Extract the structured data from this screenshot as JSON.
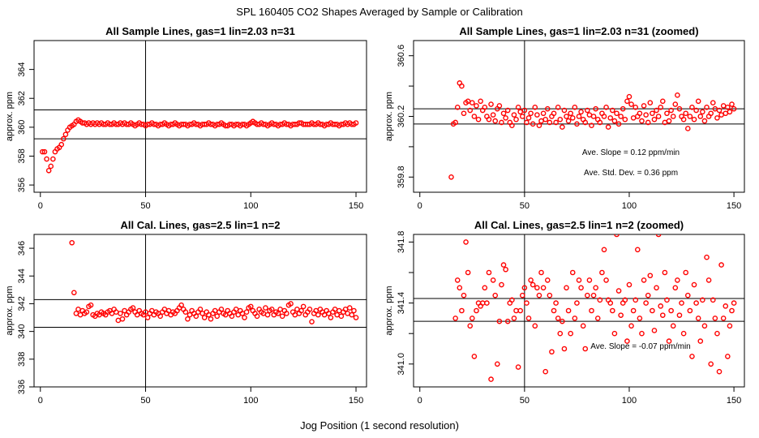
{
  "figure": {
    "main_title": "SPL  160405  CO2 Shapes Averaged by Sample or Calibration",
    "xlabel": "Jog Position (1 second resolution)"
  },
  "chart_data": [
    {
      "type": "scatter",
      "title": "All Sample Lines, gas=1 lin=2.03 n=31",
      "ylabel": "approx. ppm",
      "xlim": [
        -3,
        155
      ],
      "ylim": [
        355.5,
        366
      ],
      "xticks": [
        0,
        50,
        100,
        150
      ],
      "yticks": [
        356,
        358,
        360,
        362,
        364
      ],
      "vline": 50,
      "hlines": [
        359.2,
        361.2
      ],
      "color": "#ff0000",
      "grid": false,
      "annotations": [],
      "x": [
        1,
        2,
        3,
        4,
        5,
        6,
        7,
        8,
        9,
        10,
        11,
        12,
        13,
        14,
        15,
        16,
        17,
        18,
        19,
        20,
        21,
        22,
        23,
        24,
        25,
        26,
        27,
        28,
        29,
        30,
        31,
        32,
        33,
        34,
        35,
        36,
        37,
        38,
        39,
        40,
        41,
        42,
        43,
        44,
        45,
        46,
        47,
        48,
        49,
        50,
        51,
        52,
        53,
        54,
        55,
        56,
        57,
        58,
        59,
        60,
        61,
        62,
        63,
        64,
        65,
        66,
        67,
        68,
        69,
        70,
        71,
        72,
        73,
        74,
        75,
        76,
        77,
        78,
        79,
        80,
        81,
        82,
        83,
        84,
        85,
        86,
        87,
        88,
        89,
        90,
        91,
        92,
        93,
        94,
        95,
        96,
        97,
        98,
        99,
        100,
        101,
        102,
        103,
        104,
        105,
        106,
        107,
        108,
        109,
        110,
        111,
        112,
        113,
        114,
        115,
        116,
        117,
        118,
        119,
        120,
        121,
        122,
        123,
        124,
        125,
        126,
        127,
        128,
        129,
        130,
        131,
        132,
        133,
        134,
        135,
        136,
        137,
        138,
        139,
        140,
        141,
        142,
        143,
        144,
        145,
        146,
        147,
        148,
        149,
        150
      ],
      "y": [
        358.3,
        358.3,
        357.8,
        357.0,
        357.3,
        357.8,
        358.3,
        358.5,
        358.6,
        358.8,
        359.2,
        359.5,
        359.8,
        360.0,
        360.1,
        360.2,
        360.4,
        360.5,
        360.4,
        360.3,
        360.3,
        360.2,
        360.3,
        360.2,
        360.3,
        360.2,
        360.3,
        360.2,
        360.3,
        360.2,
        360.2,
        360.3,
        360.2,
        360.2,
        360.3,
        360.2,
        360.2,
        360.3,
        360.2,
        360.3,
        360.2,
        360.2,
        360.3,
        360.2,
        360.1,
        360.2,
        360.3,
        360.2,
        360.2,
        360.1,
        360.2,
        360.2,
        360.3,
        360.2,
        360.2,
        360.1,
        360.2,
        360.2,
        360.3,
        360.2,
        360.1,
        360.2,
        360.2,
        360.3,
        360.2,
        360.1,
        360.2,
        360.2,
        360.2,
        360.1,
        360.2,
        360.2,
        360.3,
        360.2,
        360.2,
        360.1,
        360.2,
        360.2,
        360.2,
        360.3,
        360.2,
        360.2,
        360.1,
        360.2,
        360.2,
        360.3,
        360.2,
        360.1,
        360.1,
        360.2,
        360.2,
        360.1,
        360.2,
        360.2,
        360.1,
        360.2,
        360.2,
        360.1,
        360.2,
        360.3,
        360.4,
        360.3,
        360.2,
        360.2,
        360.3,
        360.2,
        360.2,
        360.1,
        360.2,
        360.3,
        360.2,
        360.2,
        360.1,
        360.2,
        360.2,
        360.3,
        360.2,
        360.2,
        360.1,
        360.2,
        360.2,
        360.2,
        360.3,
        360.3,
        360.2,
        360.2,
        360.2,
        360.2,
        360.3,
        360.2,
        360.2,
        360.3,
        360.2,
        360.2,
        360.1,
        360.2,
        360.2,
        360.3,
        360.2,
        360.2,
        360.2,
        360.1,
        360.2,
        360.2,
        360.3,
        360.2,
        360.3,
        360.2,
        360.2,
        360.3
      ]
    },
    {
      "type": "scatter",
      "title": "All Sample Lines, gas=1 lin=2.03 n=31 (zoomed)",
      "ylabel": "approx. ppm",
      "xlim": [
        -3,
        155
      ],
      "ylim": [
        359.7,
        360.7
      ],
      "xticks": [
        0,
        50,
        100,
        150
      ],
      "yticks": [
        359.8,
        360.0,
        360.2,
        360.4,
        360.6
      ],
      "yticklabels": [
        "359.8",
        "",
        "360.2",
        "",
        "360.6"
      ],
      "vline": 50,
      "hlines": [
        360.15,
        360.25
      ],
      "color": "#ff0000",
      "grid": false,
      "annotations": [
        "Ave. Slope =  0.12  ppm/min",
        "Ave. Std. Dev. =  0.36  ppm"
      ],
      "x": [
        15,
        16,
        17,
        18,
        19,
        20,
        21,
        22,
        23,
        24,
        25,
        26,
        27,
        28,
        29,
        30,
        31,
        32,
        33,
        34,
        35,
        36,
        37,
        38,
        39,
        40,
        41,
        42,
        43,
        44,
        45,
        46,
        47,
        48,
        49,
        50,
        51,
        52,
        53,
        54,
        55,
        56,
        57,
        58,
        59,
        60,
        61,
        62,
        63,
        64,
        65,
        66,
        67,
        68,
        69,
        70,
        71,
        72,
        73,
        74,
        75,
        76,
        77,
        78,
        79,
        80,
        81,
        82,
        83,
        84,
        85,
        86,
        87,
        88,
        89,
        90,
        91,
        92,
        93,
        94,
        95,
        96,
        97,
        98,
        99,
        100,
        101,
        102,
        103,
        104,
        105,
        106,
        107,
        108,
        109,
        110,
        111,
        112,
        113,
        114,
        115,
        116,
        117,
        118,
        119,
        120,
        121,
        122,
        123,
        124,
        125,
        126,
        127,
        128,
        129,
        130,
        131,
        132,
        133,
        134,
        135,
        136,
        137,
        138,
        139,
        140,
        141,
        142,
        143,
        144,
        145,
        146,
        147,
        148,
        149,
        150
      ],
      "y": [
        359.8,
        360.15,
        360.16,
        360.26,
        360.42,
        360.4,
        360.22,
        360.29,
        360.3,
        360.24,
        360.29,
        360.2,
        360.27,
        360.18,
        360.3,
        360.24,
        360.26,
        360.2,
        360.18,
        360.28,
        360.21,
        360.17,
        360.25,
        360.27,
        360.16,
        360.22,
        360.19,
        360.24,
        360.16,
        360.14,
        360.21,
        360.18,
        360.26,
        360.23,
        360.2,
        360.24,
        360.16,
        360.19,
        360.22,
        360.15,
        360.26,
        360.21,
        360.14,
        360.17,
        360.22,
        360.18,
        360.25,
        360.16,
        360.2,
        360.22,
        360.16,
        360.26,
        360.18,
        360.13,
        360.24,
        360.2,
        360.17,
        360.22,
        360.19,
        360.26,
        360.15,
        360.2,
        360.23,
        360.18,
        360.16,
        360.24,
        360.21,
        360.14,
        360.2,
        360.25,
        360.18,
        360.16,
        360.22,
        360.2,
        360.26,
        360.13,
        360.19,
        360.24,
        360.17,
        360.22,
        360.15,
        360.2,
        360.25,
        360.18,
        360.3,
        360.33,
        360.28,
        360.19,
        360.26,
        360.2,
        360.22,
        360.17,
        360.27,
        360.21,
        360.16,
        360.29,
        360.22,
        360.18,
        360.24,
        360.2,
        360.26,
        360.3,
        360.16,
        360.22,
        360.17,
        360.24,
        360.2,
        360.28,
        360.34,
        360.25,
        360.2,
        360.18,
        360.22,
        360.12,
        360.2,
        360.26,
        360.18,
        360.24,
        360.3,
        360.2,
        360.23,
        360.17,
        360.26,
        360.2,
        360.22,
        360.29,
        360.25,
        360.19,
        360.24,
        360.21,
        360.27,
        360.22,
        360.26,
        360.23,
        360.28,
        360.25
      ]
    },
    {
      "type": "scatter",
      "title": "All Cal. Lines, gas=2.5 lin=1 n=2",
      "ylabel": "approx. ppm",
      "xlim": [
        -3,
        155
      ],
      "ylim": [
        336,
        347
      ],
      "xticks": [
        0,
        50,
        100,
        150
      ],
      "yticks": [
        336,
        338,
        340,
        342,
        344,
        346
      ],
      "vline": 50,
      "hlines": [
        340.3,
        342.3
      ],
      "color": "#ff0000",
      "grid": false,
      "annotations": [],
      "x": [
        15,
        16,
        17,
        18,
        19,
        20,
        21,
        22,
        23,
        24,
        25,
        26,
        27,
        28,
        29,
        30,
        31,
        32,
        33,
        34,
        35,
        36,
        37,
        38,
        39,
        40,
        41,
        42,
        43,
        44,
        45,
        46,
        47,
        48,
        49,
        50,
        51,
        52,
        53,
        54,
        55,
        56,
        57,
        58,
        59,
        60,
        61,
        62,
        63,
        64,
        65,
        66,
        67,
        68,
        69,
        70,
        71,
        72,
        73,
        74,
        75,
        76,
        77,
        78,
        79,
        80,
        81,
        82,
        83,
        84,
        85,
        86,
        87,
        88,
        89,
        90,
        91,
        92,
        93,
        94,
        95,
        96,
        97,
        98,
        99,
        100,
        101,
        102,
        103,
        104,
        105,
        106,
        107,
        108,
        109,
        110,
        111,
        112,
        113,
        114,
        115,
        116,
        117,
        118,
        119,
        120,
        121,
        122,
        123,
        124,
        125,
        126,
        127,
        128,
        129,
        130,
        131,
        132,
        133,
        134,
        135,
        136,
        137,
        138,
        139,
        140,
        141,
        142,
        143,
        144,
        145,
        146,
        147,
        148,
        149,
        150
      ],
      "y": [
        346.4,
        342.8,
        341.3,
        341.6,
        341.2,
        341.5,
        341.3,
        341.4,
        341.8,
        341.9,
        341.2,
        341.1,
        341.3,
        341.2,
        341.4,
        341.3,
        341.2,
        341.4,
        341.5,
        341.3,
        341.6,
        341.4,
        340.8,
        341.3,
        340.9,
        341.5,
        341.2,
        341.4,
        341.6,
        341.7,
        341.4,
        341.2,
        341.5,
        341.3,
        341.2,
        341.4,
        341.0,
        341.3,
        341.5,
        341.2,
        341.4,
        341.3,
        341.1,
        341.4,
        341.6,
        341.3,
        341.5,
        341.2,
        341.4,
        341.3,
        341.5,
        341.7,
        341.9,
        341.6,
        341.4,
        340.9,
        341.2,
        341.5,
        341.3,
        341.1,
        341.4,
        341.6,
        341.3,
        341.0,
        341.4,
        341.2,
        340.9,
        341.3,
        341.5,
        341.1,
        341.4,
        341.6,
        341.3,
        341.2,
        341.5,
        341.3,
        341.1,
        341.4,
        341.6,
        341.2,
        341.5,
        341.3,
        341.0,
        341.4,
        341.7,
        341.8,
        341.5,
        341.3,
        341.1,
        341.6,
        341.4,
        341.3,
        341.7,
        341.2,
        341.5,
        341.6,
        341.2,
        341.4,
        341.3,
        341.6,
        341.1,
        341.5,
        341.3,
        341.9,
        342.0,
        341.4,
        341.2,
        341.6,
        341.3,
        341.5,
        341.8,
        341.2,
        341.4,
        341.6,
        340.7,
        341.3,
        341.5,
        341.2,
        341.6,
        341.4,
        341.2,
        341.5,
        341.3,
        341.0,
        341.4,
        341.6,
        341.2,
        341.5,
        341.1,
        341.4,
        341.6,
        341.3,
        341.7,
        341.2,
        341.5,
        341.0
      ]
    },
    {
      "type": "scatter",
      "title": "All Cal. Lines, gas=2.5 lin=1 n=2 (zoomed)",
      "ylabel": "approx. ppm",
      "xlim": [
        -3,
        155
      ],
      "ylim": [
        340.85,
        341.85
      ],
      "xticks": [
        0,
        50,
        100,
        150
      ],
      "yticks": [
        341.0,
        341.2,
        341.4,
        341.6,
        341.8
      ],
      "yticklabels": [
        "341.0",
        "",
        "341.4",
        "",
        "341.8"
      ],
      "vline": 50,
      "hlines": [
        341.28,
        341.43
      ],
      "color": "#ff0000",
      "grid": false,
      "annotations": [
        "Ave. Slope =  -0.07  ppm/min"
      ],
      "x": [
        17,
        18,
        19,
        20,
        21,
        22,
        23,
        24,
        25,
        26,
        27,
        28,
        29,
        30,
        31,
        32,
        33,
        34,
        35,
        36,
        37,
        38,
        39,
        40,
        41,
        42,
        43,
        44,
        45,
        46,
        47,
        48,
        49,
        50,
        51,
        52,
        53,
        54,
        55,
        56,
        57,
        58,
        59,
        60,
        61,
        62,
        63,
        64,
        65,
        66,
        67,
        68,
        69,
        70,
        71,
        72,
        73,
        74,
        75,
        76,
        77,
        78,
        79,
        80,
        81,
        82,
        83,
        84,
        85,
        86,
        87,
        88,
        89,
        90,
        91,
        92,
        93,
        94,
        95,
        96,
        97,
        98,
        99,
        100,
        101,
        102,
        103,
        104,
        105,
        106,
        107,
        108,
        109,
        110,
        111,
        112,
        113,
        114,
        115,
        116,
        117,
        118,
        119,
        120,
        121,
        122,
        123,
        124,
        125,
        126,
        127,
        128,
        129,
        130,
        131,
        132,
        133,
        134,
        135,
        136,
        137,
        138,
        139,
        140,
        141,
        142,
        143,
        144,
        145,
        146,
        147,
        148,
        149,
        150
      ],
      "y": [
        341.3,
        341.55,
        341.5,
        341.35,
        341.45,
        341.8,
        341.6,
        341.25,
        341.3,
        341.05,
        341.35,
        341.4,
        341.38,
        341.4,
        341.5,
        341.4,
        341.6,
        340.9,
        341.55,
        341.45,
        341.0,
        341.28,
        341.52,
        341.65,
        341.62,
        341.28,
        341.4,
        341.42,
        341.3,
        341.35,
        340.98,
        341.35,
        341.45,
        341.5,
        341.4,
        341.3,
        341.55,
        341.52,
        341.25,
        341.5,
        341.45,
        341.6,
        341.5,
        340.95,
        341.55,
        341.45,
        341.08,
        341.35,
        341.4,
        341.3,
        341.2,
        341.28,
        341.1,
        341.5,
        341.35,
        341.2,
        341.6,
        341.3,
        341.4,
        341.55,
        341.5,
        341.25,
        341.1,
        341.45,
        341.55,
        341.35,
        341.45,
        341.5,
        341.3,
        341.42,
        341.6,
        341.75,
        341.55,
        341.42,
        341.4,
        341.35,
        341.2,
        341.85,
        341.48,
        341.32,
        341.4,
        341.42,
        341.15,
        341.52,
        341.25,
        341.35,
        341.42,
        341.75,
        341.3,
        341.2,
        341.55,
        341.4,
        341.45,
        341.58,
        341.35,
        341.22,
        341.5,
        341.85,
        341.38,
        341.32,
        341.6,
        341.42,
        341.15,
        341.35,
        341.25,
        341.5,
        341.55,
        341.32,
        341.4,
        341.2,
        341.6,
        341.45,
        341.35,
        341.05,
        341.52,
        341.4,
        341.3,
        341.15,
        341.42,
        341.25,
        341.7,
        341.55,
        341.0,
        341.42,
        341.3,
        341.2,
        340.95,
        341.65,
        341.3,
        341.38,
        341.05,
        341.25,
        341.35,
        341.4
      ]
    }
  ]
}
